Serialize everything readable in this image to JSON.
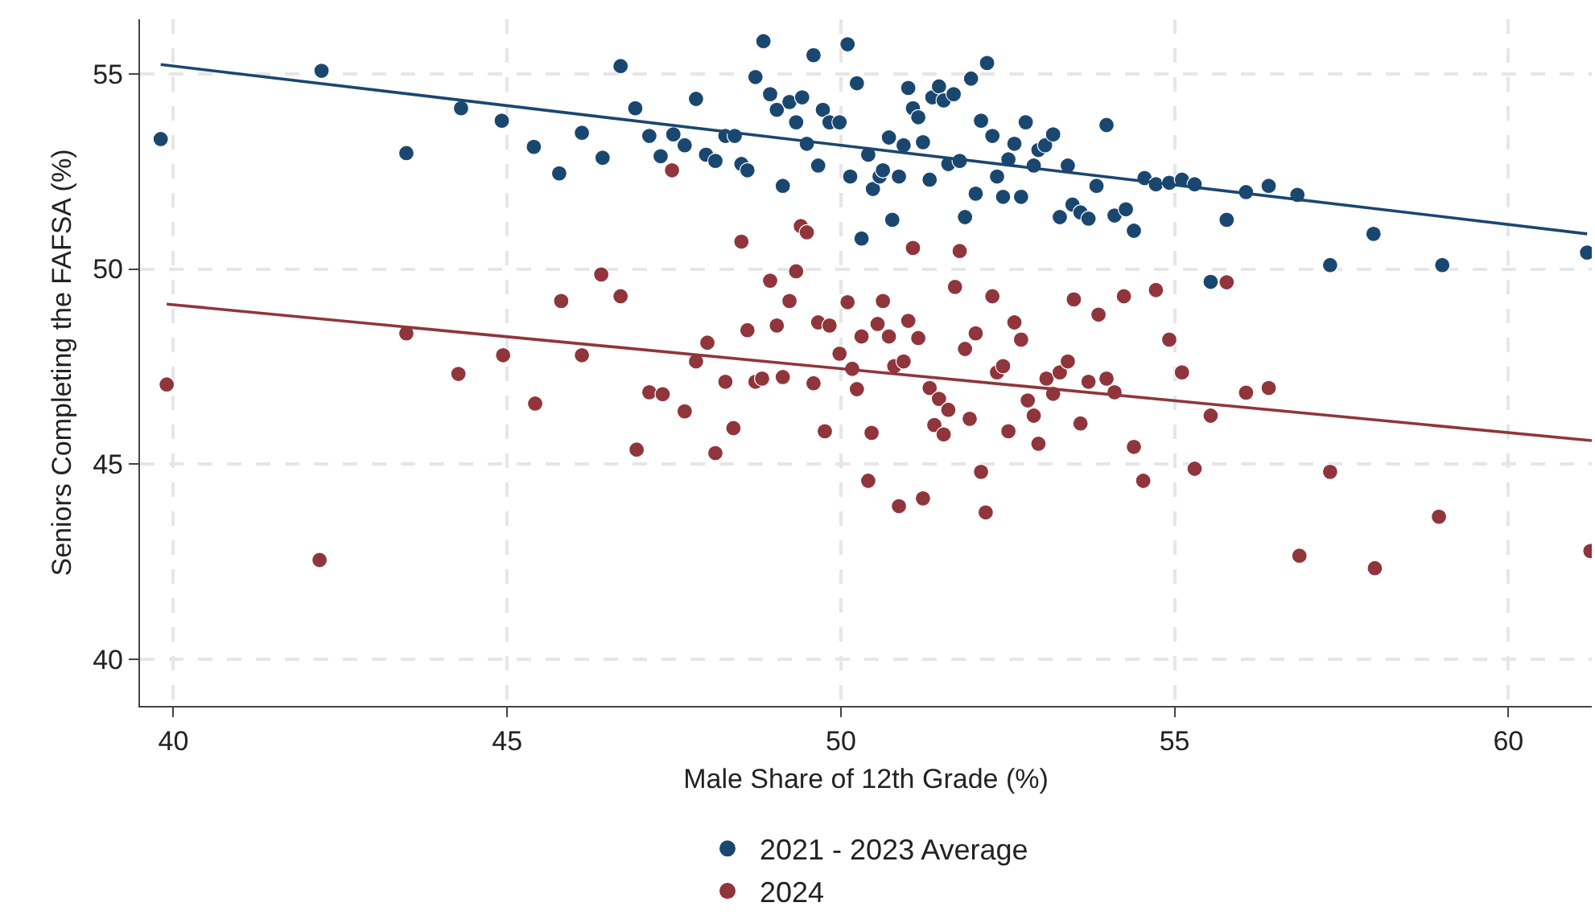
{
  "chart_data": {
    "type": "scatter",
    "xlabel": "Male Share of 12th Grade (%)",
    "ylabel": "Seniors Completing the FAFSA (%)",
    "xlim": [
      39.5,
      61.25
    ],
    "xticks": [
      40,
      45,
      50,
      55,
      60
    ],
    "ylim": [
      38.8,
      56.4
    ],
    "yticks": [
      40,
      45,
      50,
      55
    ],
    "grid": true,
    "legend": "bottom",
    "series": [
      {
        "name": "2021 - 2023 Average",
        "color": "#1a476f",
        "marker": "circle",
        "x": [
          39.81,
          42.22,
          43.49,
          44.31,
          44.92,
          45.4,
          45.78,
          46.12,
          46.43,
          46.7,
          46.92,
          47.13,
          47.3,
          47.49,
          47.66,
          47.83,
          47.98,
          48.12,
          48.27,
          48.41,
          48.51,
          48.6,
          48.72,
          48.84,
          48.94,
          49.04,
          49.13,
          49.23,
          49.33,
          49.42,
          49.49,
          49.59,
          49.66,
          49.73,
          49.83,
          49.98,
          50.1,
          50.24,
          50.14,
          50.31,
          50.41,
          50.48,
          50.58,
          50.63,
          50.72,
          50.77,
          50.87,
          50.94,
          51.01,
          51.08,
          51.16,
          51.23,
          51.33,
          51.37,
          51.47,
          51.54,
          51.61,
          51.69,
          51.78,
          51.86,
          51.95,
          52.02,
          52.1,
          52.19,
          52.27,
          52.34,
          52.43,
          52.51,
          52.6,
          52.7,
          52.77,
          52.89,
          52.96,
          53.06,
          53.18,
          53.28,
          53.4,
          53.47,
          53.59,
          53.71,
          53.83,
          53.98,
          54.1,
          54.27,
          54.39,
          54.55,
          54.72,
          54.92,
          55.11,
          55.3,
          55.54,
          55.78,
          56.07,
          56.41,
          56.84,
          57.33,
          57.98,
          59.01,
          61.18
        ],
        "values": [
          53.33,
          55.08,
          52.97,
          54.12,
          53.8,
          53.13,
          52.45,
          53.49,
          52.85,
          55.2,
          54.12,
          53.41,
          52.89,
          53.45,
          53.17,
          54.36,
          52.93,
          52.77,
          53.41,
          53.41,
          52.69,
          52.53,
          54.92,
          55.84,
          54.48,
          54.08,
          52.13,
          54.28,
          53.76,
          54.4,
          53.21,
          55.48,
          52.65,
          54.08,
          53.76,
          53.76,
          55.76,
          54.76,
          52.37,
          50.78,
          52.93,
          52.05,
          52.37,
          52.53,
          53.37,
          51.26,
          52.37,
          53.17,
          54.64,
          54.12,
          53.89,
          53.25,
          52.29,
          54.4,
          54.68,
          54.32,
          52.69,
          54.48,
          52.77,
          51.33,
          54.88,
          51.93,
          53.8,
          55.28,
          53.41,
          52.37,
          51.85,
          52.81,
          53.21,
          51.85,
          53.76,
          52.65,
          53.05,
          53.17,
          53.45,
          51.33,
          52.65,
          51.65,
          51.45,
          51.29,
          52.13,
          53.69,
          51.37,
          51.53,
          50.98,
          52.33,
          52.17,
          52.21,
          52.29,
          52.17,
          49.67,
          51.26,
          51.97,
          52.13,
          51.9,
          50.1,
          50.9,
          50.1,
          50.42
        ]
      },
      {
        "name": "2024",
        "color": "#90353b",
        "marker": "circle",
        "x": [
          47.47,
          39.9,
          42.19,
          43.49,
          44.27,
          44.94,
          45.42,
          45.81,
          46.12,
          46.41,
          46.7,
          46.94,
          47.13,
          47.33,
          47.66,
          47.83,
          48.0,
          48.12,
          48.27,
          48.39,
          48.51,
          48.6,
          48.72,
          48.82,
          48.94,
          49.04,
          49.13,
          49.23,
          49.33,
          49.4,
          49.49,
          49.59,
          49.66,
          49.76,
          49.83,
          49.98,
          50.1,
          50.17,
          50.24,
          50.31,
          50.41,
          50.46,
          51.08,
          51.78,
          50.63,
          50.55,
          50.72,
          51.01,
          51.16,
          50.8,
          50.94,
          50.87,
          51.23,
          51.33,
          51.47,
          51.61,
          51.4,
          51.54,
          51.71,
          51.86,
          52.02,
          51.93,
          52.1,
          52.17,
          52.27,
          52.34,
          52.43,
          52.51,
          52.6,
          52.7,
          52.8,
          52.89,
          52.96,
          53.08,
          53.18,
          53.28,
          53.4,
          53.49,
          53.59,
          53.71,
          53.86,
          53.98,
          54.1,
          54.24,
          54.39,
          54.53,
          54.72,
          54.92,
          55.11,
          55.3,
          55.54,
          55.78,
          56.07,
          56.41,
          56.87,
          57.33,
          58.0,
          58.96,
          61.23
        ],
        "values": [
          52.53,
          47.04,
          42.54,
          48.35,
          47.31,
          47.79,
          46.55,
          49.18,
          47.79,
          49.86,
          49.3,
          45.37,
          46.84,
          46.79,
          46.35,
          47.63,
          48.11,
          45.28,
          47.11,
          45.92,
          50.7,
          48.43,
          47.11,
          47.19,
          49.7,
          48.55,
          47.23,
          49.18,
          49.94,
          51.1,
          50.94,
          47.07,
          48.63,
          45.84,
          48.55,
          47.83,
          49.15,
          47.44,
          46.92,
          48.27,
          44.57,
          45.8,
          50.54,
          50.46,
          49.18,
          48.59,
          48.27,
          48.67,
          48.23,
          47.51,
          47.63,
          43.92,
          44.12,
          46.95,
          46.67,
          46.39,
          46.0,
          45.76,
          49.54,
          47.95,
          48.35,
          46.16,
          44.8,
          43.76,
          49.3,
          47.35,
          47.51,
          45.84,
          48.63,
          48.19,
          46.63,
          46.24,
          45.52,
          47.19,
          46.8,
          47.35,
          47.63,
          49.22,
          46.04,
          47.11,
          48.83,
          47.19,
          46.84,
          49.3,
          45.44,
          44.57,
          49.46,
          48.19,
          47.35,
          44.88,
          46.24,
          49.66,
          46.83,
          46.95,
          42.65,
          44.8,
          42.33,
          43.65,
          42.77
        ]
      },
      {
        "type": "line",
        "color": "#1a476f",
        "marker": "none",
        "x": [
          39.81,
          61.18
        ],
        "values": [
          55.24,
          50.9
        ]
      },
      {
        "type": "line",
        "color": "#90353b",
        "marker": "none",
        "x": [
          39.9,
          61.25
        ],
        "values": [
          49.1,
          45.6
        ]
      }
    ]
  }
}
